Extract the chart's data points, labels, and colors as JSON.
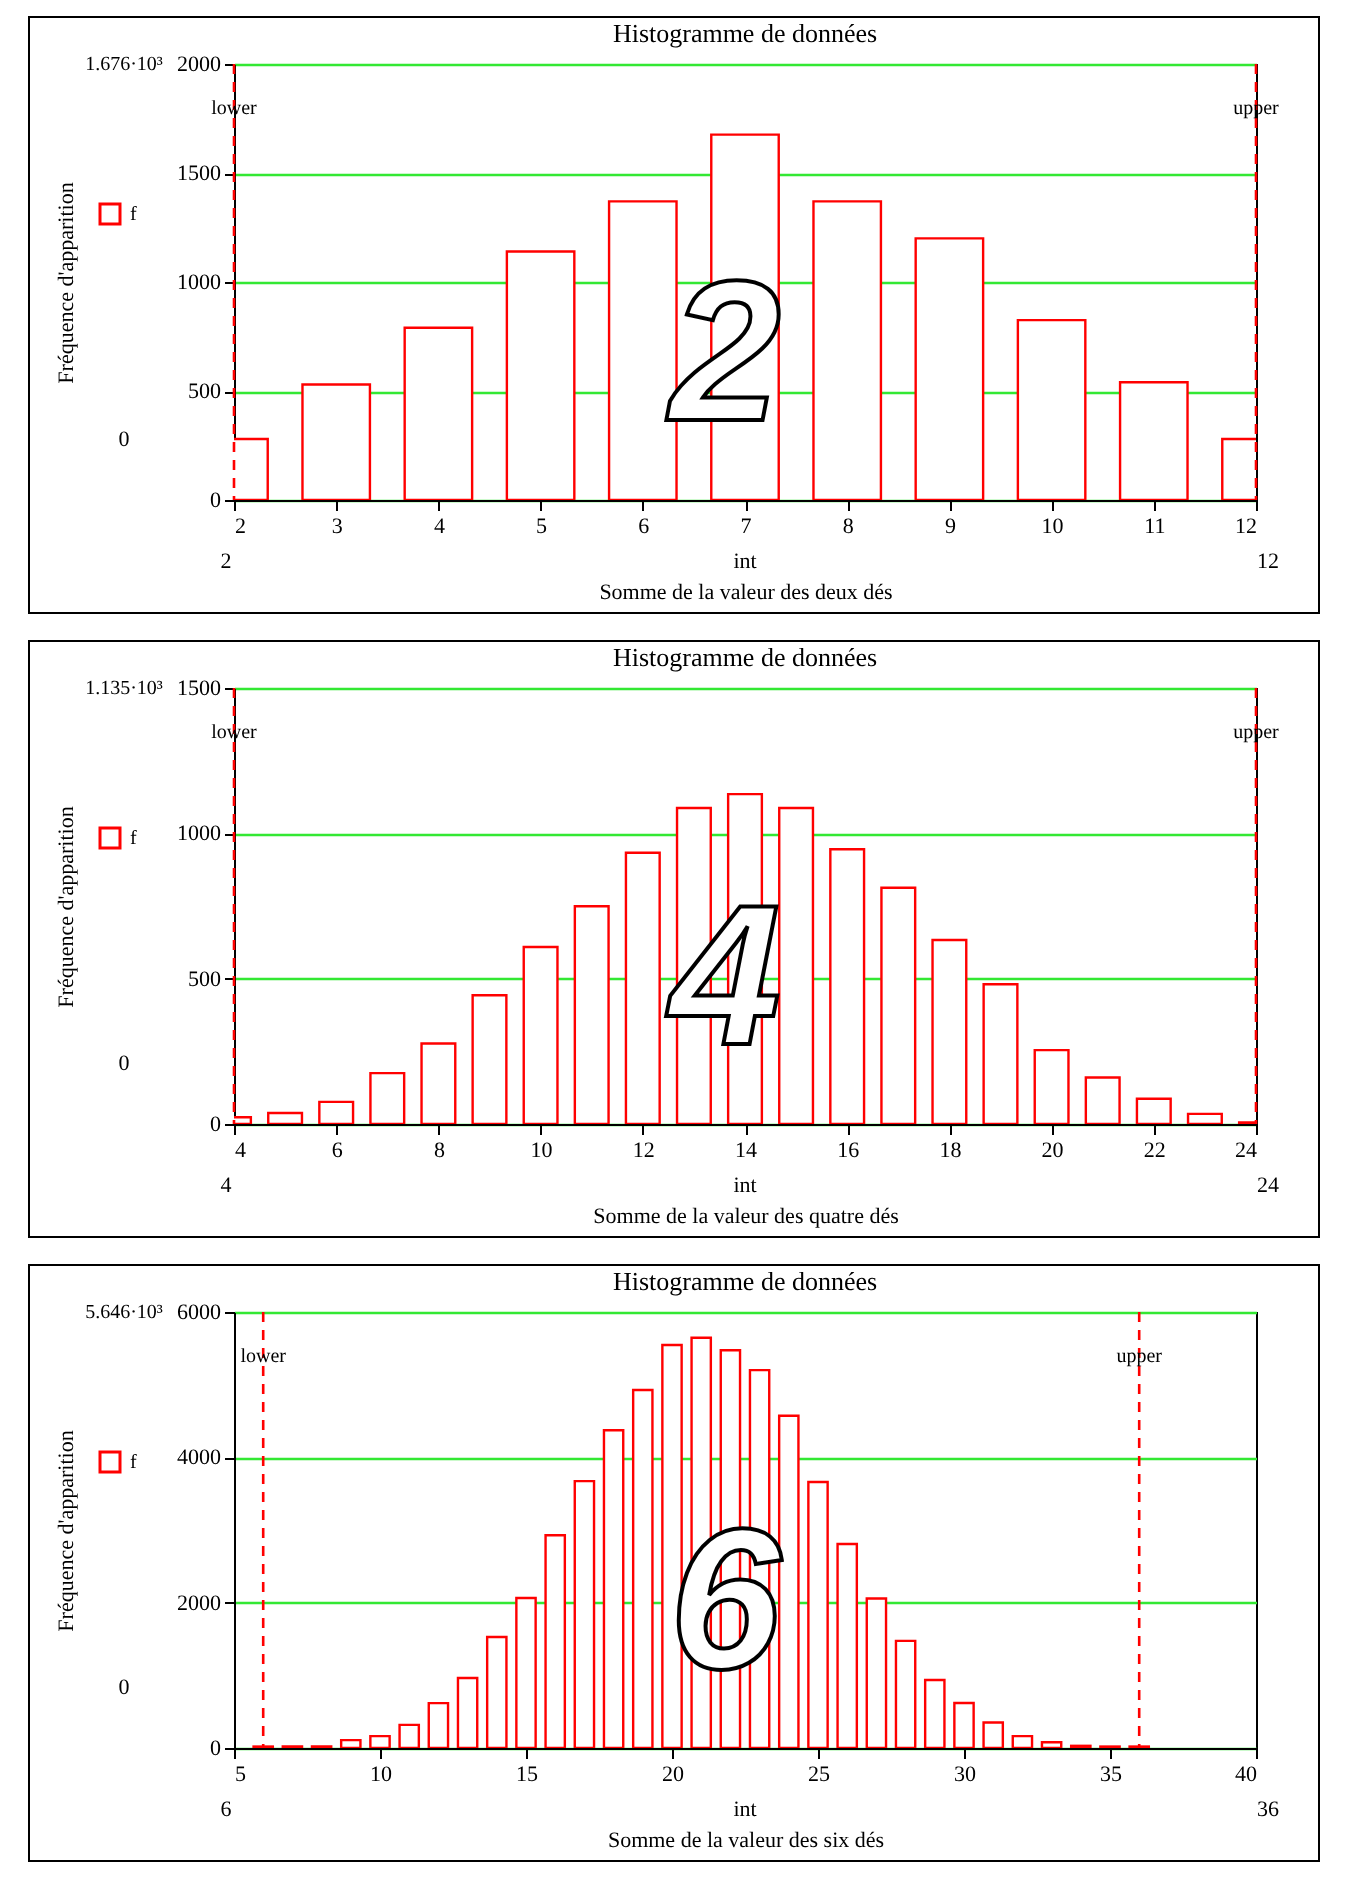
{
  "chart_data": [
    {
      "type": "bar",
      "title": "Histogramme de données",
      "xlabel": "Somme de la valeur des deux dés",
      "ylabel": "Fréquence d'apparition",
      "x": [
        2,
        3,
        4,
        5,
        6,
        7,
        8,
        9,
        10,
        11,
        12
      ],
      "series": [
        {
          "name": "f",
          "color": "#ff0000",
          "values": [
            280,
            530,
            790,
            1140,
            1370,
            1676,
            1370,
            1200,
            825,
            540,
            280
          ]
        }
      ],
      "xlim": [
        2,
        12
      ],
      "xticks": [
        2,
        3,
        4,
        5,
        6,
        7,
        8,
        9,
        10,
        11,
        12
      ],
      "ylim": [
        0,
        2000
      ],
      "yticks": [
        0,
        500,
        1000,
        1500,
        2000
      ],
      "grid": "y",
      "legend": "left",
      "ref_lines": [
        {
          "axis": "x",
          "value": 2,
          "label": "lower",
          "color": "#ff0000",
          "line_style": "dashed"
        },
        {
          "axis": "x",
          "value": 12,
          "label": "upper",
          "color": "#ff0000",
          "line_style": "dashed"
        }
      ],
      "annotations": [
        "1.676·10³",
        "0",
        "2",
        "12",
        "int",
        "2"
      ]
    },
    {
      "type": "bar",
      "title": "Histogramme de données",
      "xlabel": "Somme de la valeur des quatre dés",
      "ylabel": "Fréquence d'apparition",
      "x": [
        4,
        5,
        6,
        7,
        8,
        9,
        10,
        11,
        12,
        13,
        14,
        15,
        16,
        17,
        18,
        19,
        20,
        21,
        22,
        23,
        24
      ],
      "series": [
        {
          "name": "f",
          "color": "#ff0000",
          "values": [
            23,
            38,
            76,
            175,
            277,
            443,
            609,
            749,
            933,
            1087,
            1135,
            1087,
            945,
            813,
            633,
            481,
            254,
            160,
            87,
            35,
            5
          ]
        }
      ],
      "xlim": [
        4,
        24
      ],
      "xticks": [
        4,
        6,
        8,
        10,
        12,
        14,
        16,
        18,
        20,
        22,
        24
      ],
      "ylim": [
        0,
        1500
      ],
      "yticks": [
        0,
        500,
        1000,
        1500
      ],
      "grid": "y",
      "legend": "left",
      "ref_lines": [
        {
          "axis": "x",
          "value": 4,
          "label": "lower",
          "color": "#ff0000",
          "line_style": "dashed"
        },
        {
          "axis": "x",
          "value": 24,
          "label": "upper",
          "color": "#ff0000",
          "line_style": "dashed"
        }
      ],
      "annotations": [
        "1.135·10³",
        "0",
        "4",
        "24",
        "int",
        "4"
      ]
    },
    {
      "type": "bar",
      "title": "Histogramme de données",
      "xlabel": "Somme de la valeur des six dés",
      "ylabel": "Fréquence d'apparition",
      "x": [
        6,
        7,
        8,
        9,
        10,
        11,
        12,
        13,
        14,
        15,
        16,
        17,
        18,
        19,
        20,
        21,
        22,
        23,
        24,
        25,
        26,
        27,
        28,
        29,
        30,
        31,
        32,
        33,
        34,
        35,
        36
      ],
      "series": [
        {
          "name": "f",
          "color": "#ff0000",
          "values": [
            20,
            20,
            20,
            109,
            164,
            318,
            618,
            964,
            1527,
            2064,
            2927,
            3673,
            4373,
            4927,
            5545,
            5646,
            5473,
            5200,
            4573,
            3661,
            2807,
            2058,
            1474,
            936,
            620,
            351,
            164,
            80,
            30,
            20,
            20
          ]
        }
      ],
      "xlim": [
        5,
        40
      ],
      "xticks": [
        5,
        10,
        15,
        20,
        25,
        30,
        35,
        40
      ],
      "ylim": [
        0,
        6000
      ],
      "yticks": [
        0,
        2000,
        4000,
        6000
      ],
      "grid": "y",
      "legend": "left",
      "ref_lines": [
        {
          "axis": "x",
          "value": 6,
          "label": "lower",
          "color": "#ff0000",
          "line_style": "dashed"
        },
        {
          "axis": "x",
          "value": 36,
          "label": "upper",
          "color": "#ff0000",
          "line_style": "dashed"
        }
      ],
      "annotations": [
        "5.646·10³",
        "0",
        "6",
        "36",
        "int",
        "6"
      ]
    }
  ]
}
